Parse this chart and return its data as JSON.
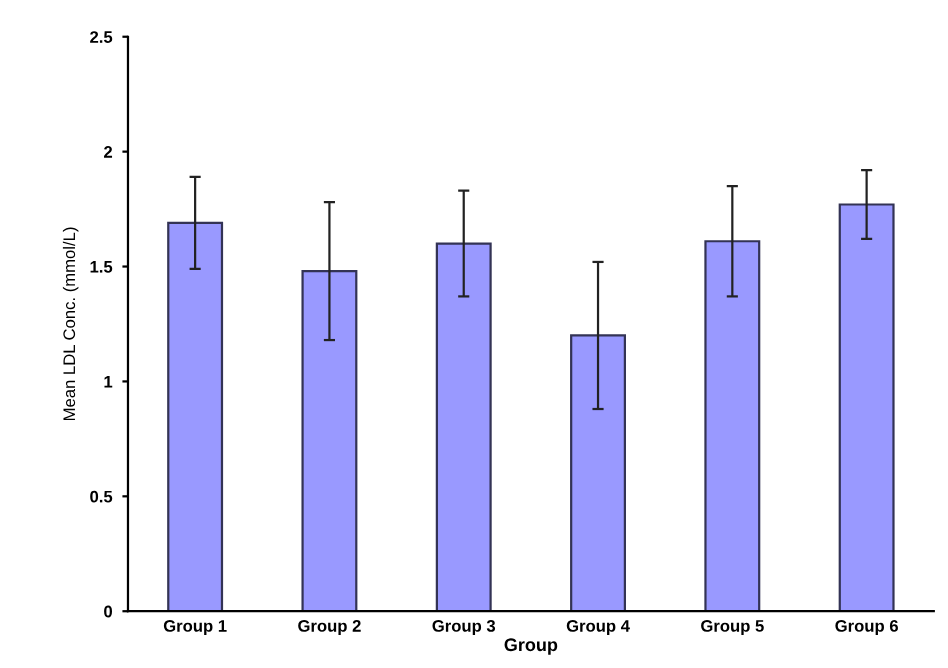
{
  "chart_data": {
    "type": "bar",
    "xlabel": "Group",
    "ylabel": "Mean LDL Conc. (mmol/L)",
    "categories": [
      "Group 1",
      "Group 2",
      "Group 3",
      "Group 4",
      "Group 5",
      "Group 6"
    ],
    "values": [
      1.69,
      1.48,
      1.6,
      1.2,
      1.61,
      1.77
    ],
    "errors": [
      0.2,
      0.3,
      0.23,
      0.32,
      0.24,
      0.15
    ],
    "color": "#9999ff",
    "ylim": [
      0,
      2.5
    ],
    "yticks": [
      0,
      0.5,
      1,
      1.5,
      2,
      2.5
    ],
    "grid": false,
    "legend": false
  }
}
